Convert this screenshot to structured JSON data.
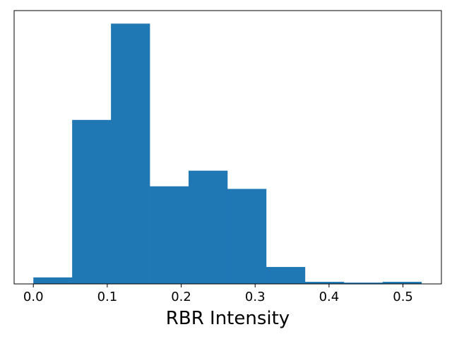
{
  "chart_data": {
    "type": "bar",
    "histogram": true,
    "title": "",
    "xlabel": "RBR Intensity",
    "ylabel": "",
    "y_ticks_visible": false,
    "grid": false,
    "xlim": [
      -0.026,
      0.552
    ],
    "ylim": [
      0,
      1.05
    ],
    "x_ticks": [
      0.0,
      0.1,
      0.2,
      0.3,
      0.4,
      0.5
    ],
    "x_tick_labels": [
      "0.0",
      "0.1",
      "0.2",
      "0.3",
      "0.4",
      "0.5"
    ],
    "bin_edges": [
      0.0,
      0.0525,
      0.105,
      0.1575,
      0.21,
      0.2625,
      0.315,
      0.3675,
      0.42,
      0.4725,
      0.525
    ],
    "values": [
      0.025,
      0.63,
      1.0,
      0.375,
      0.435,
      0.365,
      0.065,
      0.008,
      0.005,
      0.008
    ],
    "color": "#1f77b4"
  }
}
